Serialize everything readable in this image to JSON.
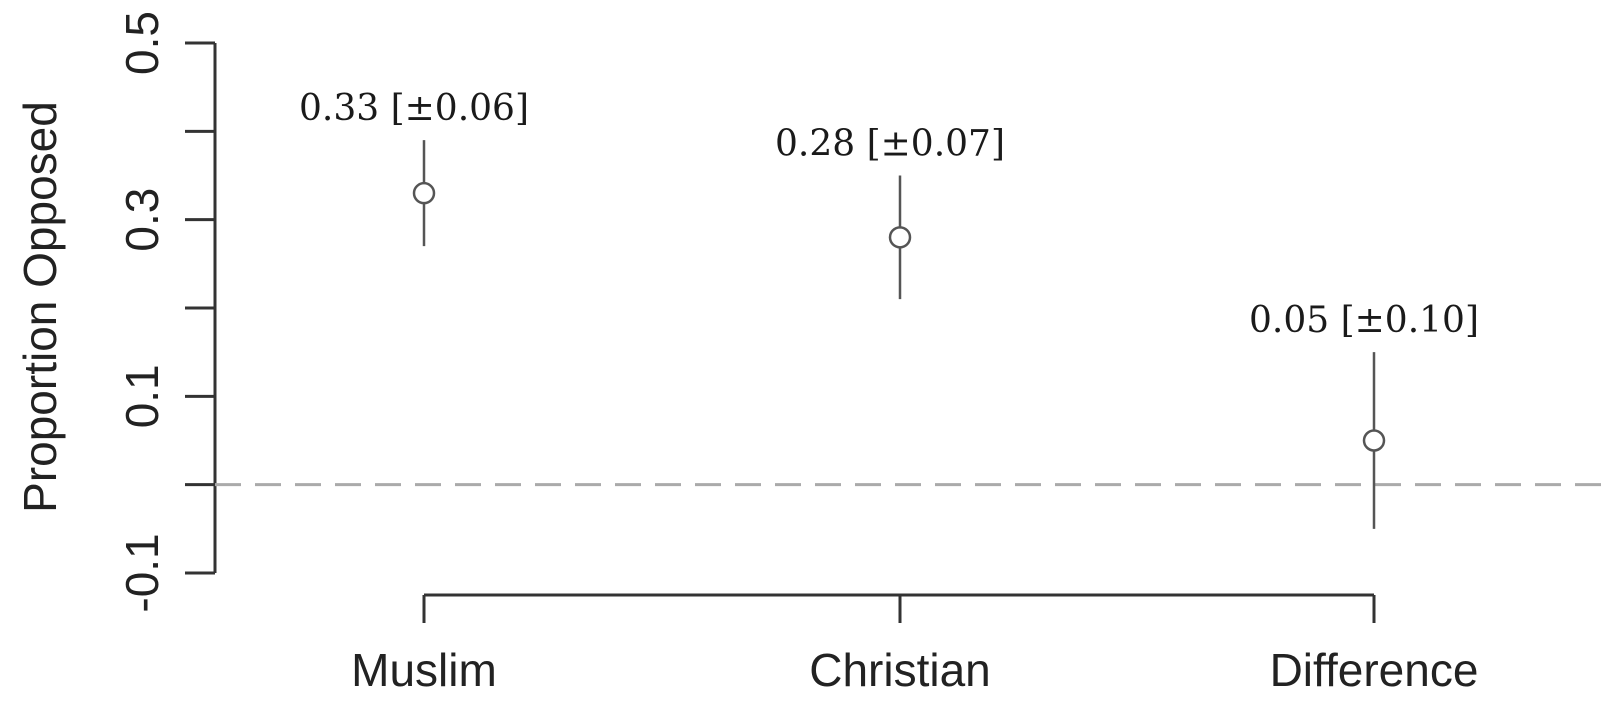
{
  "chart_data": {
    "type": "scatter",
    "title": "",
    "xlabel": "",
    "ylabel": "Proportion Opposed",
    "ylim": [
      -0.1,
      0.5
    ],
    "yticks": [
      -0.1,
      0.1,
      0.3,
      0.5
    ],
    "yticks_minor": [
      0.0,
      0.2,
      0.4
    ],
    "ytick_labels": [
      "-0.1",
      "0.1",
      "0.3",
      "0.5"
    ],
    "categories": [
      "Muslim",
      "Christian",
      "Difference"
    ],
    "values": [
      0.33,
      0.28,
      0.05
    ],
    "errors": [
      0.06,
      0.07,
      0.1
    ],
    "data_labels": [
      "0.33 [±0.06]",
      "0.28 [±0.07]",
      "0.05 [±0.10]"
    ],
    "reference_line": {
      "y": 0,
      "style": "dashed"
    },
    "grid": false,
    "legend": "none",
    "colors": {
      "axis": "#333333",
      "errorbar": "#555555",
      "point": "#555555",
      "reference_line": "#aaaaaa"
    }
  }
}
